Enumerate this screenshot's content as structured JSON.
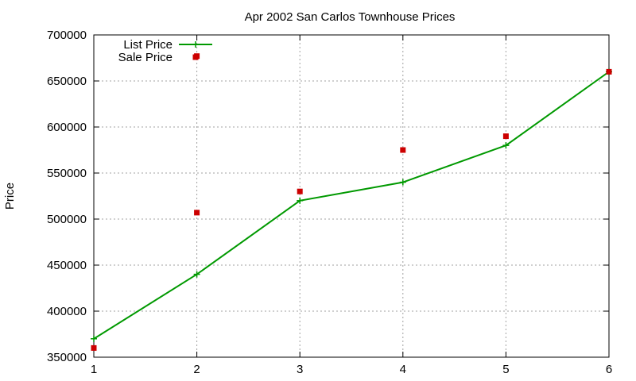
{
  "chart_data": {
    "type": "line",
    "title": "Apr 2002 San Carlos Townhouse Prices",
    "xlabel": "",
    "ylabel": "Price",
    "xlim": [
      1,
      6
    ],
    "ylim": [
      350000,
      700000
    ],
    "x_ticks": [
      1,
      2,
      3,
      4,
      5,
      6
    ],
    "y_ticks": [
      350000,
      400000,
      450000,
      500000,
      550000,
      600000,
      650000,
      700000
    ],
    "grid": true,
    "legend_position": "top-left",
    "series": [
      {
        "name": "List Price",
        "style": "line-points",
        "marker": "plus",
        "color": "#009900",
        "points": [
          {
            "x": 1,
            "y": 370000
          },
          {
            "x": 2,
            "y": 440000
          },
          {
            "x": 3,
            "y": 520000
          },
          {
            "x": 4,
            "y": 540000
          },
          {
            "x": 5,
            "y": 580000
          },
          {
            "x": 6,
            "y": 660000
          }
        ]
      },
      {
        "name": "Sale Price",
        "style": "points",
        "marker": "square",
        "color": "#cc0000",
        "points": [
          {
            "x": 1,
            "y": 360000
          },
          {
            "x": 2,
            "y": 507000
          },
          {
            "x": 2,
            "y": 677000
          },
          {
            "x": 3,
            "y": 530000
          },
          {
            "x": 4,
            "y": 575000
          },
          {
            "x": 5,
            "y": 590000
          },
          {
            "x": 6,
            "y": 660000
          }
        ]
      }
    ]
  }
}
